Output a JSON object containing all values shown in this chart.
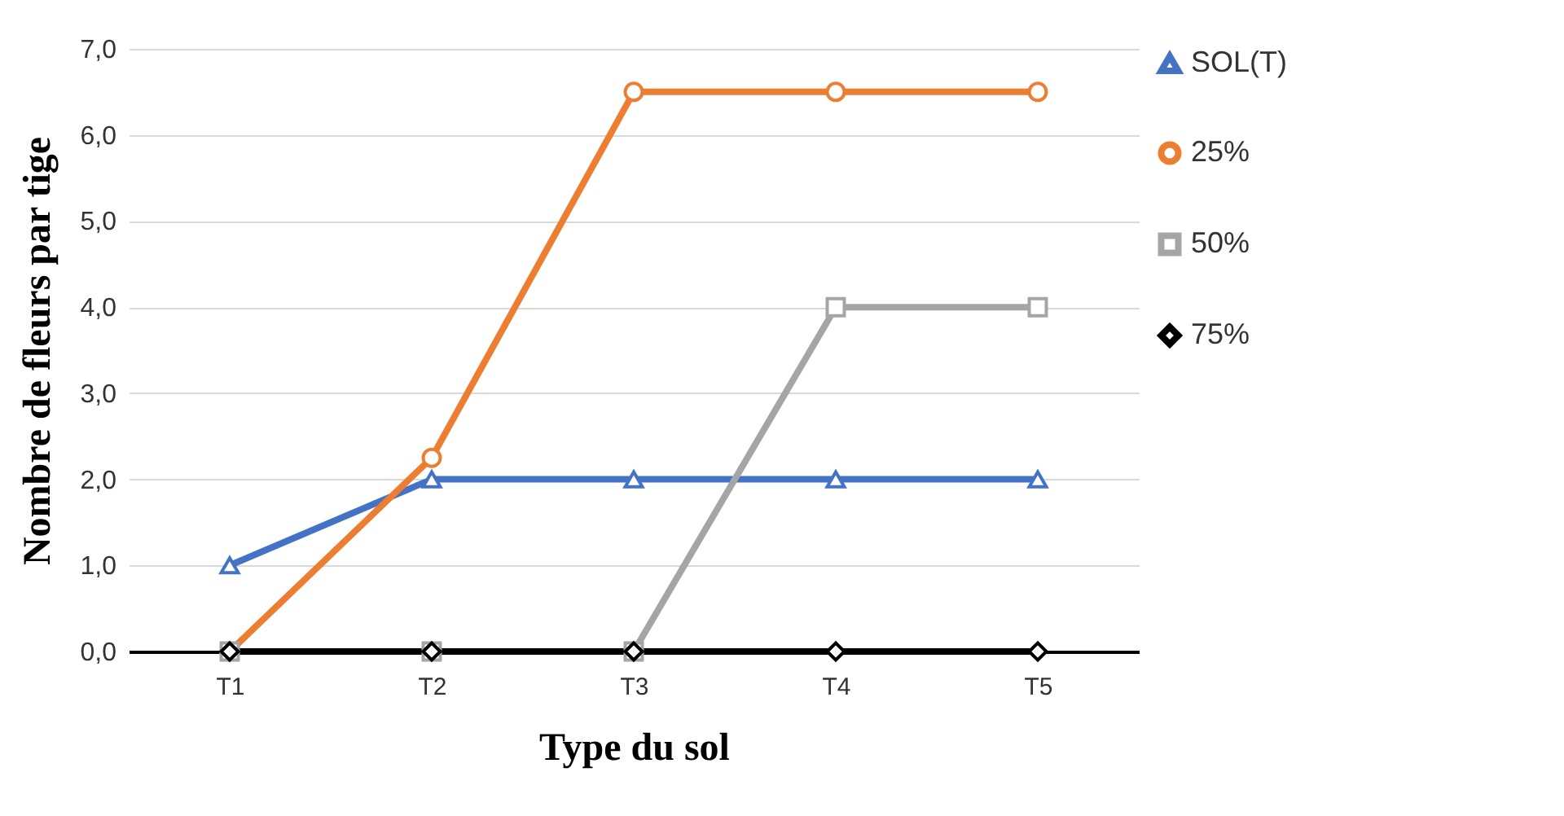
{
  "chart_data": {
    "type": "line",
    "xlabel": "Type du sol",
    "ylabel": "Nombre de fleurs par tige",
    "categories": [
      "T1",
      "T2",
      "T3",
      "T4",
      "T5"
    ],
    "series": [
      {
        "name": "SOL(T)",
        "color": "#4472c4",
        "marker": "triangle",
        "values": [
          1,
          2,
          2,
          2,
          2
        ]
      },
      {
        "name": "25%",
        "color": "#ed7d31",
        "marker": "circle",
        "values": [
          0,
          2.25,
          6.5,
          6.5,
          6.5
        ]
      },
      {
        "name": "50%",
        "color": "#a5a5a5",
        "marker": "square",
        "values": [
          0,
          0,
          0,
          4,
          4
        ]
      },
      {
        "name": "75%",
        "color": "#000000",
        "marker": "diamond",
        "values": [
          0,
          0,
          0,
          0,
          0
        ]
      }
    ],
    "ylim": [
      0,
      7
    ],
    "yticks": [
      {
        "value": 0,
        "label": "0,0"
      },
      {
        "value": 1,
        "label": "1,0"
      },
      {
        "value": 2,
        "label": "2,0"
      },
      {
        "value": 3,
        "label": "3,0"
      },
      {
        "value": 4,
        "label": "4,0"
      },
      {
        "value": 5,
        "label": "5,0"
      },
      {
        "value": 6,
        "label": "6,0"
      },
      {
        "value": 7,
        "label": "7,0"
      }
    ],
    "grid": "y",
    "legend": "right",
    "line_style": "solid"
  }
}
